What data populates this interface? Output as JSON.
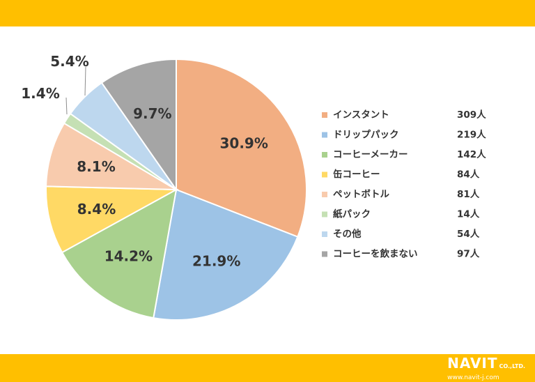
{
  "chart_data": {
    "type": "pie",
    "title": "",
    "start_angle_deg": 0,
    "direction": "clockwise",
    "slices": [
      {
        "label": "インスタント",
        "percent": 30.9,
        "pct_label": "30.9%",
        "count_label": "309人",
        "color": "#f2ae82"
      },
      {
        "label": "ドリップパック",
        "percent": 21.9,
        "pct_label": "21.9%",
        "count_label": "219人",
        "color": "#9dc3e6"
      },
      {
        "label": "コーヒーメーカー",
        "percent": 14.2,
        "pct_label": "14.2%",
        "count_label": "142人",
        "color": "#a9d18e"
      },
      {
        "label": "缶コーヒー",
        "percent": 8.4,
        "pct_label": "8.4%",
        "count_label": "84人",
        "color": "#ffd965"
      },
      {
        "label": "ペットボトル",
        "percent": 8.1,
        "pct_label": "8.1%",
        "count_label": "81人",
        "color": "#f8cbad"
      },
      {
        "label": "紙パック",
        "percent": 1.4,
        "pct_label": "1.4%",
        "count_label": "14人",
        "color": "#c5e0b4"
      },
      {
        "label": "その他",
        "percent": 5.4,
        "pct_label": "5.4%",
        "count_label": "54人",
        "color": "#bdd7ee"
      },
      {
        "label": "コーヒーを飲まない",
        "percent": 9.7,
        "pct_label": "9.7%",
        "count_label": "97人",
        "color": "#a5a5a5"
      }
    ],
    "legend_position": "right"
  },
  "brand": {
    "name": "NAVIT",
    "suffix": "CO.,LTD.",
    "url": "www.navit-j.com"
  }
}
